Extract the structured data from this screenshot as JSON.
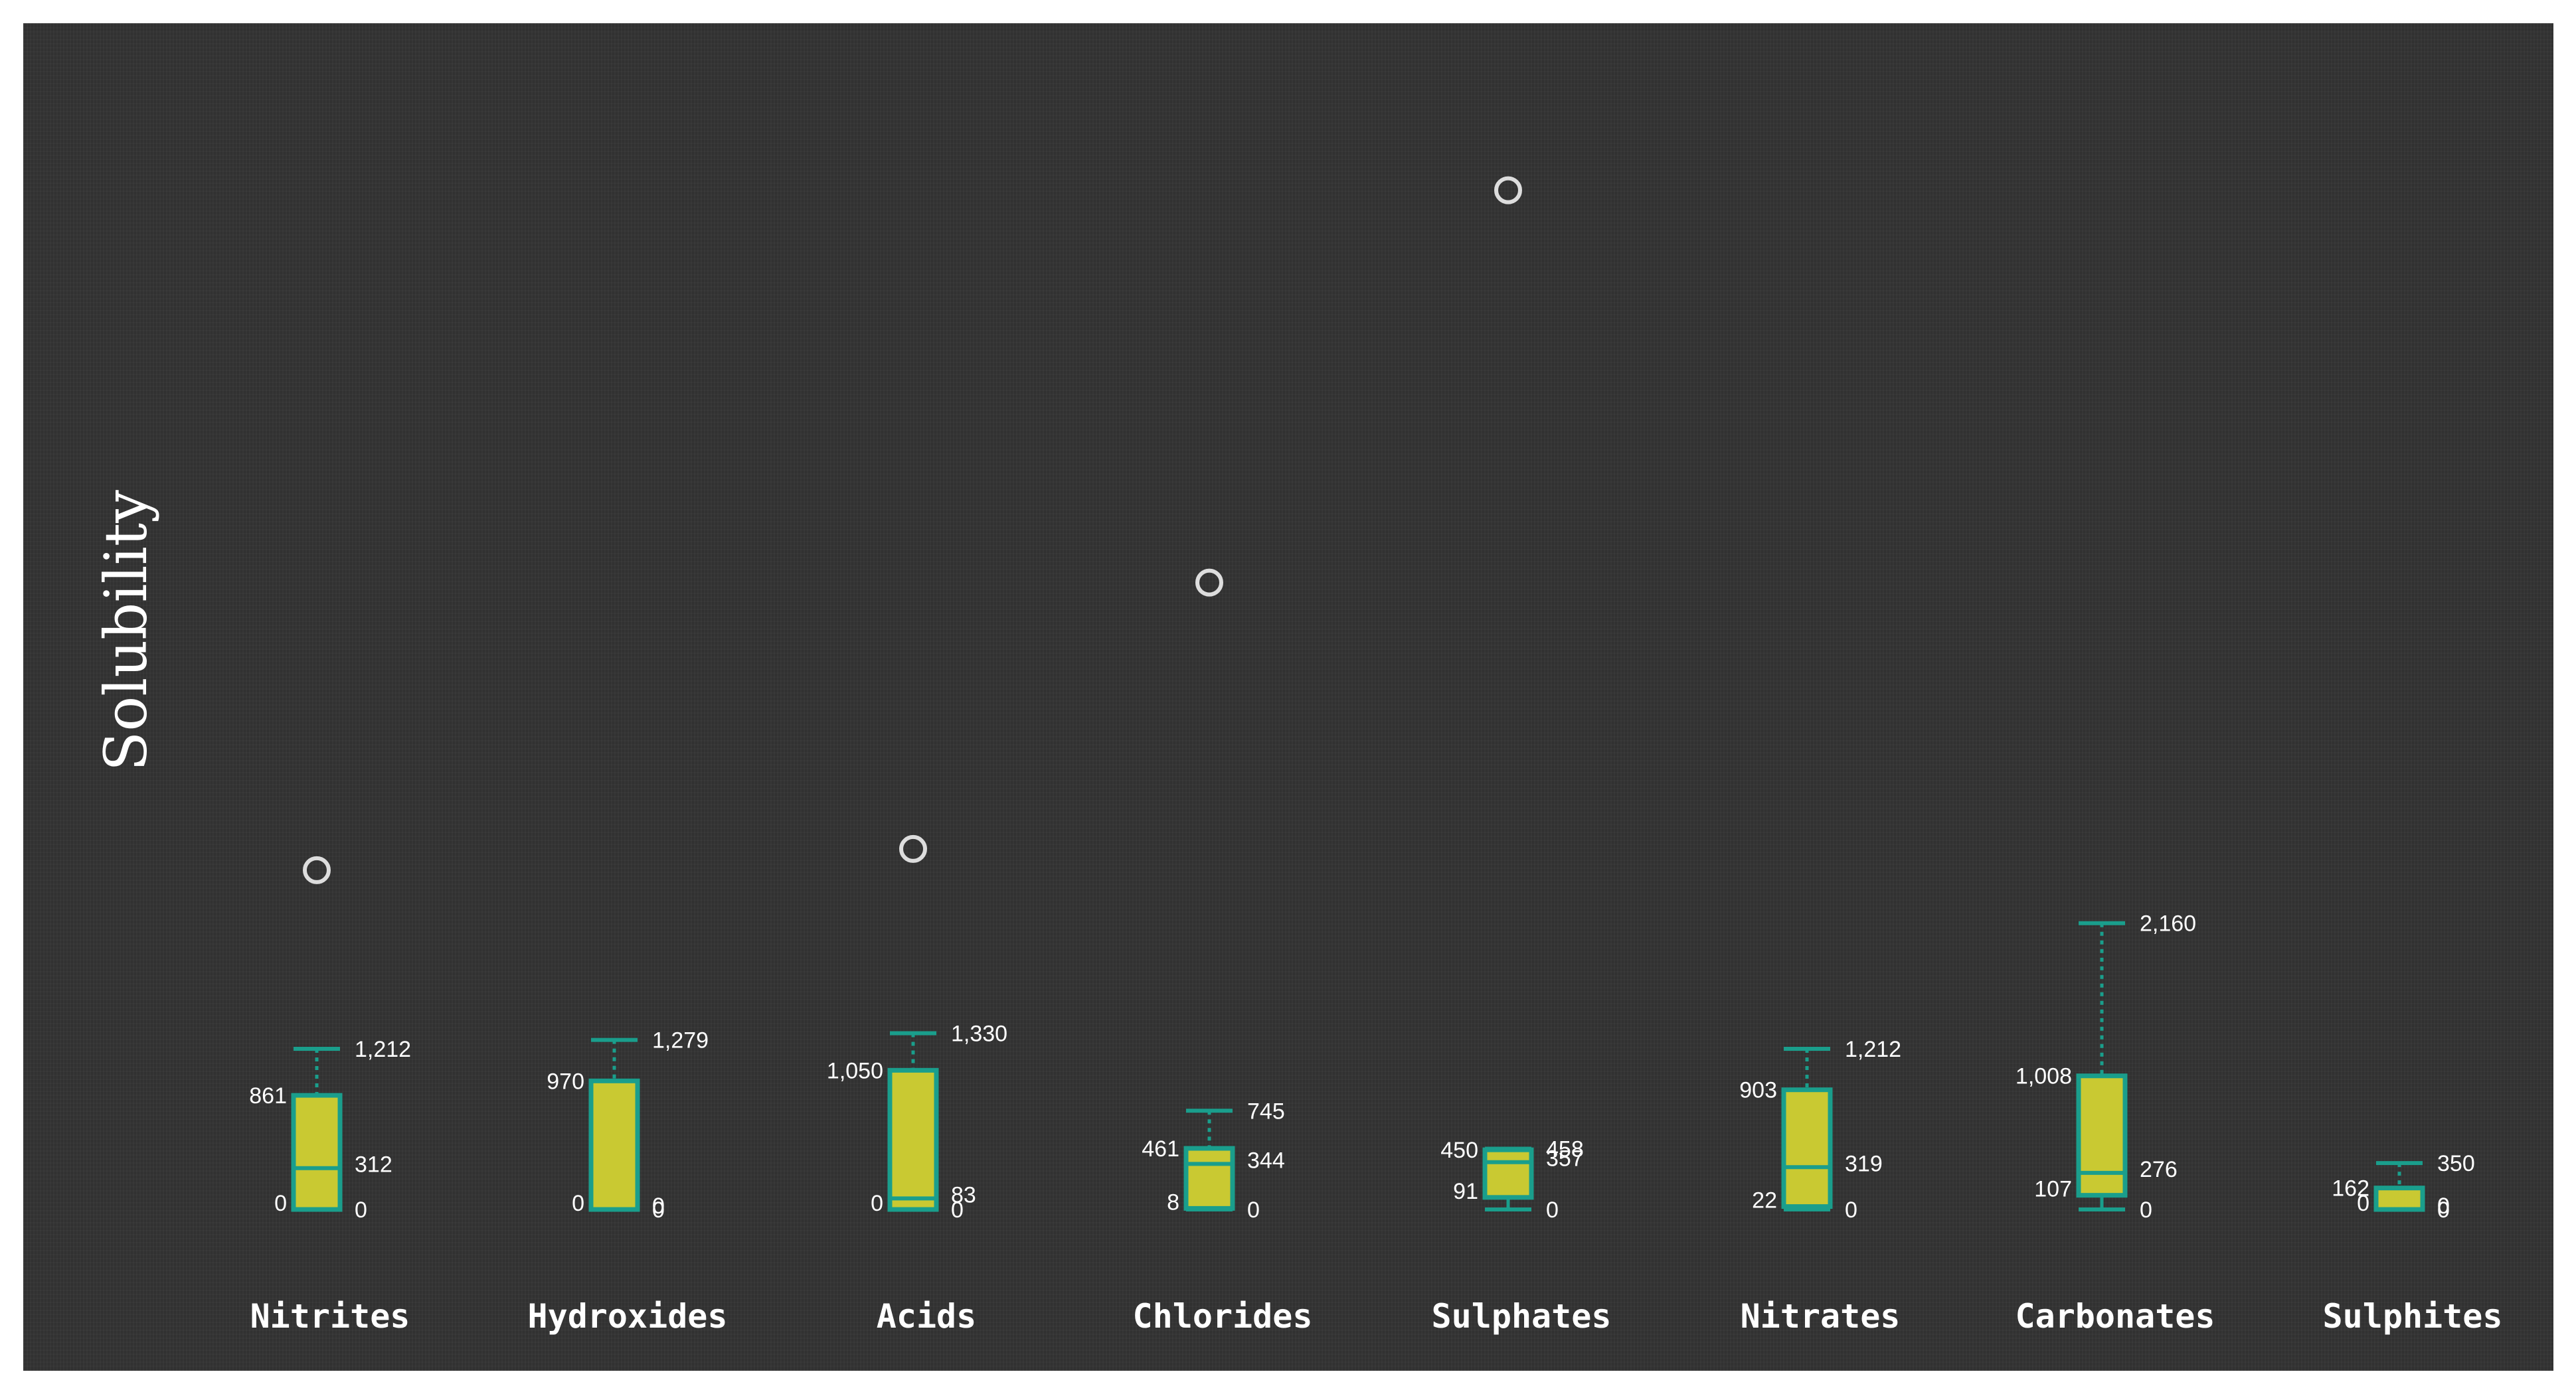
{
  "chart_data": {
    "type": "boxplot",
    "ylabel": "Solubility",
    "xlabel": "",
    "ylim": [
      0,
      8800
    ],
    "grid": false,
    "colors": {
      "background": "#333333",
      "box_fill": "#c9c932",
      "box_stroke": "#1a9e8c",
      "whisker": "#1a9e8c",
      "outlier_stroke": "#dddddd",
      "text": "#ffffff"
    },
    "categories": [
      "Nitrites",
      "Hydroxides",
      "Acids",
      "Chlorides",
      "Sulphates",
      "Nitrates",
      "Carbonates",
      "Sulphites"
    ],
    "boxes": [
      {
        "category": "Nitrites",
        "min": 0,
        "q1": 0,
        "median": 312,
        "q3": 861,
        "max": 1212,
        "outliers": [
          2560
        ],
        "labels": {
          "min": "0",
          "q1": "0",
          "median": "312",
          "q3": "861",
          "max": "1,212"
        }
      },
      {
        "category": "Hydroxides",
        "min": 0,
        "q1": 0,
        "median": 0,
        "q3": 970,
        "max": 1279,
        "outliers": [],
        "labels": {
          "min": "0",
          "q1": "0",
          "median": "0",
          "q3": "970",
          "max": "1,279"
        }
      },
      {
        "category": "Acids",
        "min": 0,
        "q1": 0,
        "median": 83,
        "q3": 1050,
        "max": 1330,
        "outliers": [
          2720
        ],
        "labels": {
          "min": "0",
          "q1": "0",
          "median": "83",
          "q3": "1,050",
          "max": "1,330"
        }
      },
      {
        "category": "Chlorides",
        "min": 0,
        "q1": 8,
        "median": 344,
        "q3": 461,
        "max": 745,
        "outliers": [
          4730
        ],
        "labels": {
          "min": "0",
          "q1": "8",
          "median": "344",
          "q3": "461",
          "max": "745"
        }
      },
      {
        "category": "Sulphates",
        "min": 0,
        "q1": 91,
        "median": 357,
        "q3": 450,
        "max": 458,
        "outliers": [
          7690
        ],
        "labels": {
          "min": "0",
          "q1": "91",
          "median": "357",
          "q3": "450",
          "max": "458"
        }
      },
      {
        "category": "Nitrates",
        "min": 0,
        "q1": 22,
        "median": 319,
        "q3": 903,
        "max": 1212,
        "outliers": [],
        "labels": {
          "min": "0",
          "q1": "22",
          "median": "319",
          "q3": "903",
          "max": "1,212"
        }
      },
      {
        "category": "Carbonates",
        "min": 0,
        "q1": 107,
        "median": 276,
        "q3": 1008,
        "max": 2160,
        "outliers": [],
        "labels": {
          "min": "0",
          "q1": "107",
          "median": "276",
          "q3": "1,008",
          "max": "2,160"
        }
      },
      {
        "category": "Sulphites",
        "min": 0,
        "q1": 0,
        "median": 0,
        "q3": 162,
        "max": 350,
        "outliers": [],
        "labels": {
          "min": "0",
          "q1": "0",
          "median": "0",
          "q3": "162",
          "max": "350"
        }
      }
    ]
  }
}
